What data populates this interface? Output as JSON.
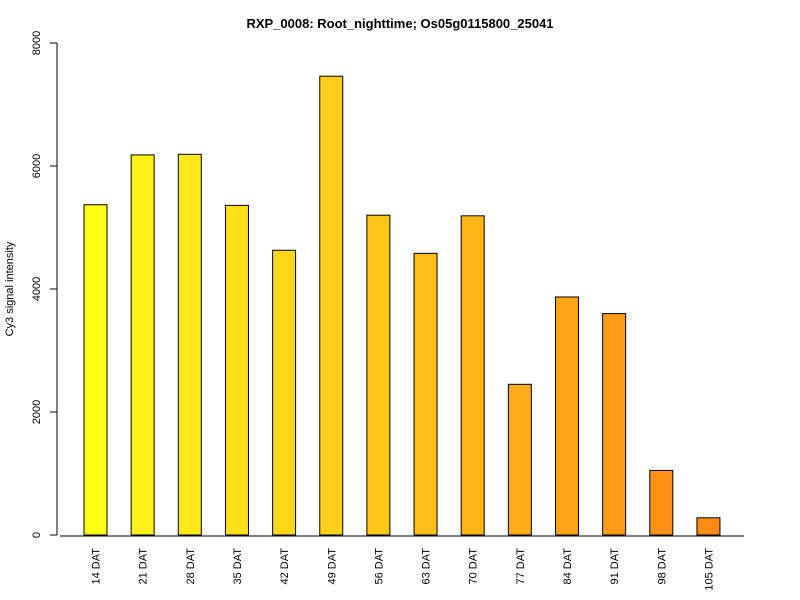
{
  "chart_data": {
    "type": "bar",
    "title": "RXP_0008: Root_nighttime; Os05g0115800_25041",
    "xlabel": "",
    "ylabel": "Cy3 signal intensity",
    "ylim": [
      0,
      8000
    ],
    "yticks": [
      0,
      2000,
      4000,
      6000,
      8000
    ],
    "grid": false,
    "legend": "none",
    "categories": [
      "14 DAT",
      "21 DAT",
      "28 DAT",
      "35 DAT",
      "42 DAT",
      "49 DAT",
      "56 DAT",
      "63 DAT",
      "70 DAT",
      "77 DAT",
      "84 DAT",
      "91 DAT",
      "98 DAT",
      "105 DAT"
    ],
    "values": [
      5370,
      6180,
      6190,
      5360,
      4630,
      7460,
      5200,
      4580,
      5190,
      2450,
      3870,
      3600,
      1050,
      280
    ],
    "bar_colors": [
      "#ffff14",
      "#fff01a",
      "#ffe81a",
      "#ffdf1a",
      "#ffd719",
      "#ffcf19",
      "#ffc519",
      "#ffbd19",
      "#ffb518",
      "#ffac18",
      "#ffa317",
      "#ff9c17",
      "#ff9216",
      "#ff8a14"
    ],
    "bar_stroke": "#000000"
  }
}
